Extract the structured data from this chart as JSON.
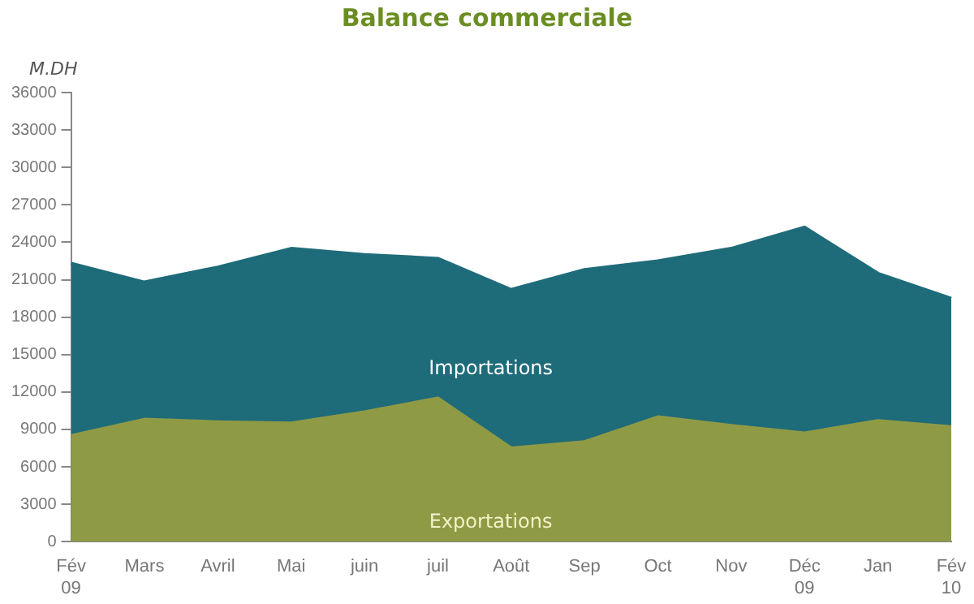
{
  "chart_data": {
    "type": "area",
    "title": "Balance commerciale",
    "ylabel": "M.DH",
    "categories": [
      "Fév 09",
      "Mars",
      "Avril",
      "Mai",
      "juin",
      "juil",
      "Août",
      "Sep",
      "Oct",
      "Nov",
      "Déc 09",
      "Jan",
      "Fév 10"
    ],
    "series": [
      {
        "name": "Exportations",
        "color": "#8f9a45",
        "values": [
          8500,
          9800,
          9600,
          9500,
          10400,
          11500,
          7500,
          8000,
          10000,
          9300,
          8700,
          9700,
          9200
        ]
      },
      {
        "name": "Importations",
        "color": "#1e6b7a",
        "values": [
          22300,
          20800,
          22000,
          23500,
          23000,
          22700,
          20200,
          21800,
          22500,
          23500,
          25200,
          21500,
          19500
        ]
      }
    ],
    "ylim": [
      0,
      36000
    ],
    "yticks": [
      0,
      3000,
      6000,
      9000,
      12000,
      15000,
      18000,
      21000,
      24000,
      27000,
      30000,
      33000,
      36000
    ],
    "grid": false,
    "legend": false
  }
}
